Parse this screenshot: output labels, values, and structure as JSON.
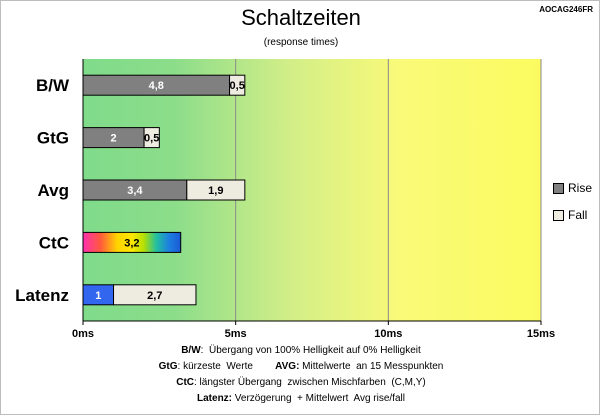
{
  "model_label": "AOCAG246FR",
  "chart_data": {
    "type": "bar",
    "orientation": "horizontal",
    "stacked": true,
    "title": "Schaltzeiten",
    "subtitle": "(response times)",
    "categories": [
      "B/W",
      "GtG",
      "Avg",
      "CtC",
      "Latenz"
    ],
    "series": [
      {
        "name": "Rise",
        "values": [
          4.8,
          2,
          3.4,
          null,
          null
        ],
        "color": "#808080"
      },
      {
        "name": "Fall",
        "values": [
          0.5,
          0.5,
          1.9,
          null,
          2.7
        ],
        "color": "#eeece1"
      }
    ],
    "special_bars": {
      "CtC": {
        "value": 3.2,
        "label": "3,2",
        "style": "rainbow-gradient"
      },
      "Latenz": {
        "value": 1,
        "label": "1",
        "color": "#3366ee"
      }
    },
    "data_labels": {
      "Rise": [
        "4,8",
        "2",
        "3,4",
        "",
        ""
      ],
      "Fall": [
        "0,5",
        "0,5",
        "1,9",
        "",
        "2,7"
      ]
    },
    "xlim": [
      0,
      15
    ],
    "x_ticks": [
      "0ms",
      "5ms",
      "10ms",
      "15ms"
    ],
    "x_tick_values": [
      0,
      5,
      10,
      15
    ],
    "background": "gradient green to yellow"
  },
  "legend": [
    {
      "label": "Rise",
      "color": "#808080"
    },
    {
      "label": "Fall",
      "color": "#eeece1"
    }
  ],
  "footnotes": {
    "line1_key": "B/W",
    "line1_text": ":  Übergang von 100% Helligkeit auf 0% Helligkeit",
    "line2_key1": "GtG",
    "line2_text1": ": kürzeste  Werte        ",
    "line2_key2": "AVG:",
    "line2_text2": " Mittelwerte  an 15 Messpunkten",
    "line3_key": "CtC",
    "line3_text": ": längster Übergang  zwischen Mischfarben  (C,M,Y)",
    "line4_key": "Latenz:",
    "line4_text": " Verzögerung  + Mittelwert  Avg rise/fall"
  }
}
